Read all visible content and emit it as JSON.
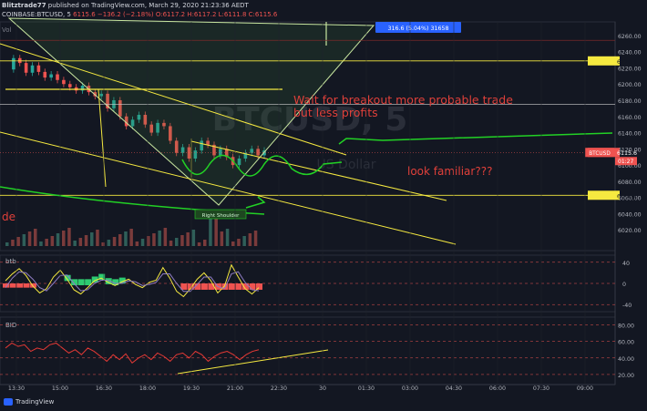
{
  "header": {
    "line1_author": "Blitztrade77",
    "line1_rest": " published on TradingView.com, March 29, 2020 21:23:36 AEDT",
    "line2_symbol": "COINBASE:BTCUSD, 5",
    "line2_price": "6115.6",
    "line2_change": "−136.2 (−2.18%)",
    "line2_ohlc": "O:6117.2 H:6117.2 L:6111.8 C:6115.6"
  },
  "watermark": "BTCUSD, 5",
  "watermark_sub": "US Dollar",
  "vol_label": "Vol",
  "colors": {
    "bg": "#131722",
    "up": "#26a69a",
    "down": "#ef5350",
    "yellow": "#f5e940",
    "green": "#22d125",
    "annotation": "#e0403a",
    "wedge": "#c8e6a0"
  },
  "price_chart": {
    "chart_data": {
      "type": "line",
      "title": "COINBASE:BTCUSD, 5",
      "ylim": [
        6000,
        6270
      ],
      "y_ticks": [
        "6260.00",
        "6240.00",
        "6220.00",
        "6200.00",
        "6180.00",
        "6160.00",
        "6140.00",
        "6120.00",
        "6100.00",
        "6080.00",
        "6060.00",
        "6040.00",
        "6020.00"
      ],
      "x_ticks": [
        "13:30",
        "15:00",
        "16:30",
        "18:00",
        "19:30",
        "21:00",
        "22:30",
        "30",
        "01:30",
        "03:00",
        "04:30",
        "06:00",
        "07:30",
        "09:00"
      ],
      "series": [
        {
          "values": [
            6218,
            6232,
            6226,
            6214,
            6223,
            6215,
            6208,
            6212,
            6205,
            6200,
            6196,
            6192,
            6198,
            6190,
            6185,
            6188,
            6170,
            6180,
            6160,
            6148,
            6156,
            6162,
            6150,
            6140,
            6152,
            6148,
            6130,
            6115,
            6122,
            6108,
            6118,
            6130,
            6125,
            6112,
            6120,
            6110,
            6100,
            6108,
            6115,
            6120,
            6112,
            6118
          ]
        }
      ],
      "price_labels": [
        {
          "label": "BTCUSD",
          "value": "6115.6",
          "sub": "01:27",
          "color": "#ef5350"
        },
        {
          "label": "",
          "value": "6228.6",
          "color": "#f5e940"
        },
        {
          "label": "",
          "value": "6062.7",
          "color": "#f5e940"
        }
      ],
      "measure_label": "316.6 (5.04%) 31658"
    },
    "annotations": [
      "Wait for breakout more probable trade",
      "but less profits",
      "look familiar???",
      "Right Shoulder",
      "de"
    ]
  },
  "btb_pane": {
    "label": "btb",
    "chart_data": {
      "type": "line",
      "ylim": [
        -50,
        50
      ],
      "y_ticks": [
        "40",
        "0",
        "-40"
      ],
      "series": [
        {
          "values": [
            5,
            18,
            28,
            15,
            -5,
            -18,
            -10,
            12,
            25,
            8,
            -12,
            -20,
            -8,
            5,
            10,
            2,
            -4,
            3,
            8,
            -2,
            -8,
            2,
            6,
            30,
            10,
            -15,
            -25,
            -10,
            8,
            20,
            5,
            -18,
            -5,
            35,
            12,
            -10,
            -20,
            -8
          ]
        },
        {
          "values": [
            -8,
            10,
            22,
            20,
            8,
            -8,
            -14,
            0,
            15,
            16,
            0,
            -14,
            -12,
            0,
            6,
            6,
            0,
            0,
            5,
            3,
            -4,
            -2,
            2,
            18,
            18,
            0,
            -15,
            -15,
            -2,
            12,
            12,
            -6,
            -10,
            18,
            22,
            2,
            -12,
            -14
          ]
        }
      ]
    }
  },
  "bid_pane": {
    "label": "BID",
    "chart_data": {
      "type": "line",
      "ylim": [
        10,
        85
      ],
      "y_ticks": [
        "80.00",
        "60.00",
        "40.00",
        "20.00"
      ],
      "series": [
        {
          "values": [
            52,
            58,
            54,
            56,
            48,
            52,
            50,
            56,
            58,
            52,
            46,
            50,
            44,
            52,
            48,
            42,
            36,
            44,
            38,
            45,
            34,
            40,
            44,
            38,
            46,
            42,
            36,
            44,
            46,
            40,
            48,
            44,
            36,
            42,
            46,
            48,
            44,
            38,
            44,
            48,
            50
          ]
        }
      ]
    }
  }
}
